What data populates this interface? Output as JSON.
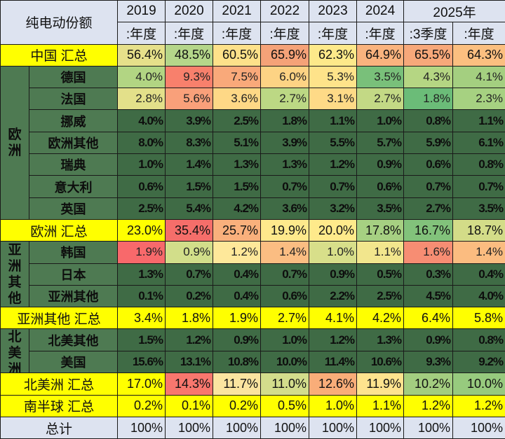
{
  "table": {
    "title": "纯电动份额",
    "years": [
      {
        "label": "2019",
        "span": 1
      },
      {
        "label": "2020",
        "span": 1
      },
      {
        "label": "2021",
        "span": 1
      },
      {
        "label": "2022",
        "span": 1
      },
      {
        "label": "2023",
        "span": 1
      },
      {
        "label": "2024",
        "span": 1
      },
      {
        "label": "2025年",
        "span": 2
      }
    ],
    "periods": [
      ":年度",
      ":年度",
      ":年度",
      ":年度",
      ":年度",
      ":年度",
      ":3季度",
      ":年度"
    ],
    "china_total": {
      "label": "中国 汇总",
      "values": [
        "56.4%",
        "48.5%",
        "60.5%",
        "65.9%",
        "62.3%",
        "64.9%",
        "65.5%",
        "64.3%"
      ],
      "colors": [
        "#e6e08a",
        "#b5d68a",
        "#fde18a",
        "#f5a278",
        "#fde98a",
        "#f9b37e",
        "#f7a87a",
        "#fbbf80"
      ]
    },
    "europe": {
      "group_label": "欧洲",
      "rows": [
        {
          "label": "德国",
          "values": [
            "4.0%",
            "9.3%",
            "7.5%",
            "6.0%",
            "5.3%",
            "3.5%",
            "4.3%",
            "4.1%"
          ],
          "colors": [
            "#b2d583",
            "#f8806c",
            "#f9a97a",
            "#fdd384",
            "#fee38a",
            "#79c07a",
            "#b5d683",
            "#a4cf80"
          ]
        },
        {
          "label": "法国",
          "values": [
            "2.8%",
            "5.6%",
            "3.6%",
            "2.7%",
            "3.1%",
            "2.7%",
            "1.8%",
            "2.3%"
          ],
          "colors": [
            "#e3e08a",
            "#f9a07a",
            "#fed886",
            "#bcd884",
            "#feda87",
            "#c3d985",
            "#6bbc78",
            "#a6d181"
          ]
        },
        {
          "label": "挪威",
          "values": [
            "4.0%",
            "3.9%",
            "2.5%",
            "1.8%",
            "1.1%",
            "1.0%",
            "0.8%",
            "1.1%"
          ]
        },
        {
          "label": "欧洲其他",
          "values": [
            "8.0%",
            "8.3%",
            "5.1%",
            "3.9%",
            "5.5%",
            "5.7%",
            "5.9%",
            "6.1%"
          ]
        },
        {
          "label": "瑞典",
          "values": [
            "1.0%",
            "1.4%",
            "1.3%",
            "1.3%",
            "1.2%",
            "0.9%",
            "0.6%",
            "0.8%"
          ]
        },
        {
          "label": "意大利",
          "values": [
            "0.6%",
            "1.5%",
            "1.5%",
            "0.7%",
            "0.7%",
            "0.6%",
            "0.7%",
            "0.7%"
          ]
        },
        {
          "label": "英国",
          "values": [
            "2.5%",
            "5.4%",
            "4.2%",
            "3.6%",
            "3.2%",
            "3.5%",
            "2.7%",
            "3.5%"
          ]
        }
      ]
    },
    "europe_total": {
      "label": "欧洲 汇总",
      "values": [
        "23.0%",
        "35.4%",
        "25.7%",
        "19.9%",
        "20.0%",
        "17.8%",
        "16.7%",
        "18.7%"
      ],
      "colors": [
        "#ffff00",
        "#f56e6a",
        "#f9b07c",
        "#fee98c",
        "#feea8b",
        "#a6d082",
        "#82c27b",
        "#d3dc88"
      ]
    },
    "asia_other": {
      "group_label": "亚洲其他",
      "rows": [
        {
          "label": "韩国",
          "values": [
            "1.9%",
            "0.9%",
            "1.2%",
            "1.4%",
            "1.0%",
            "1.1%",
            "1.6%",
            "1.4%"
          ],
          "colors": [
            "#f8696b",
            "#d2de8a",
            "#fee89a",
            "#fbbd82",
            "#d8df8a",
            "#f2e68d",
            "#f78d73",
            "#fbbc80"
          ]
        },
        {
          "label": "日本",
          "values": [
            "1.3%",
            "0.7%",
            "0.4%",
            "0.7%",
            "0.9%",
            "0.5%",
            "0.3%",
            "0.4%"
          ]
        },
        {
          "label": "亚洲其他",
          "values": [
            "0.1%",
            "0.2%",
            "0.4%",
            "0.6%",
            "2.2%",
            "2.5%",
            "4.5%",
            "4.0%"
          ]
        }
      ]
    },
    "asia_total": {
      "label": "亚洲其他 汇总",
      "values": [
        "3.4%",
        "1.8%",
        "1.9%",
        "2.7%",
        "4.1%",
        "4.2%",
        "6.4%",
        "5.8%"
      ],
      "colors": [
        "#ffff00",
        "#ffff00",
        "#ffff00",
        "#ffff00",
        "#ffff00",
        "#ffff00",
        "#ffff00",
        "#ffff00"
      ]
    },
    "north_america": {
      "group_label": "北美洲",
      "rows": [
        {
          "label": "北美其他",
          "values": [
            "1.5%",
            "1.2%",
            "0.9%",
            "1.0%",
            "1.2%",
            "1.3%",
            "0.9%",
            "0.8%"
          ]
        },
        {
          "label": "美国",
          "values": [
            "15.6%",
            "13.1%",
            "10.8%",
            "10.0%",
            "11.4%",
            "10.6%",
            "9.3%",
            "9.2%"
          ]
        }
      ]
    },
    "na_total": {
      "label": "北美洲 汇总",
      "values": [
        "17.0%",
        "14.3%",
        "11.7%",
        "11.0%",
        "12.6%",
        "11.9%",
        "10.2%",
        "10.0%"
      ],
      "colors": [
        "#ffff00",
        "#f8776e",
        "#fbe4a0",
        "#d3dd8c",
        "#f9ad79",
        "#fee38e",
        "#a3cd80",
        "#97ca7e"
      ]
    },
    "southern_total": {
      "label": "南半球 汇总",
      "values": [
        "0.2%",
        "0.1%",
        "0.2%",
        "0.5%",
        "1.0%",
        "1.1%",
        "1.2%",
        "1.2%"
      ],
      "colors": [
        "#ffff00",
        "#ffff00",
        "#ffff00",
        "#ffff00",
        "#ffff00",
        "#ffff00",
        "#ffff00",
        "#ffff00"
      ]
    },
    "grand_total": {
      "label": "总计",
      "values": [
        "100%",
        "100%",
        "100%",
        "100%",
        "100%",
        "100%",
        "100%",
        "100%"
      ]
    }
  }
}
